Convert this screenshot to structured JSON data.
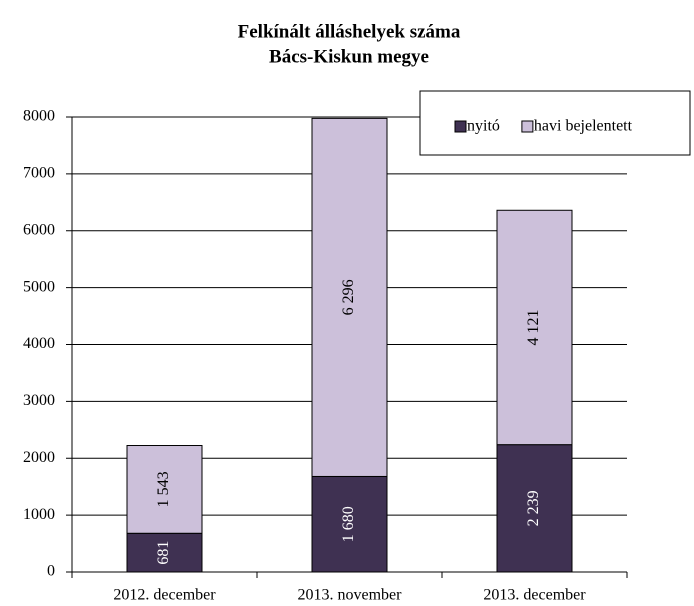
{
  "chart_data": {
    "type": "stacked_bar",
    "title": "Felkínált álláshelyek száma",
    "subtitle": "Bács-Kiskun megye",
    "categories": [
      "2012. december",
      "2013. november",
      "2013. december"
    ],
    "series": [
      {
        "name": "nyitó",
        "color": "#3f3152",
        "values": [
          681,
          1680,
          2239
        ],
        "value_labels": [
          "681",
          "1 680",
          "2 239"
        ]
      },
      {
        "name": "havi bejelentett",
        "color": "#ccc0da",
        "values": [
          1543,
          6296,
          4121
        ],
        "value_labels": [
          "1 543",
          "6 296",
          "4 121"
        ]
      }
    ],
    "ylim": [
      0,
      8000
    ],
    "yticks": [
      0,
      1000,
      2000,
      3000,
      4000,
      5000,
      6000,
      7000,
      8000
    ],
    "grid": true,
    "legend": "top-right"
  }
}
